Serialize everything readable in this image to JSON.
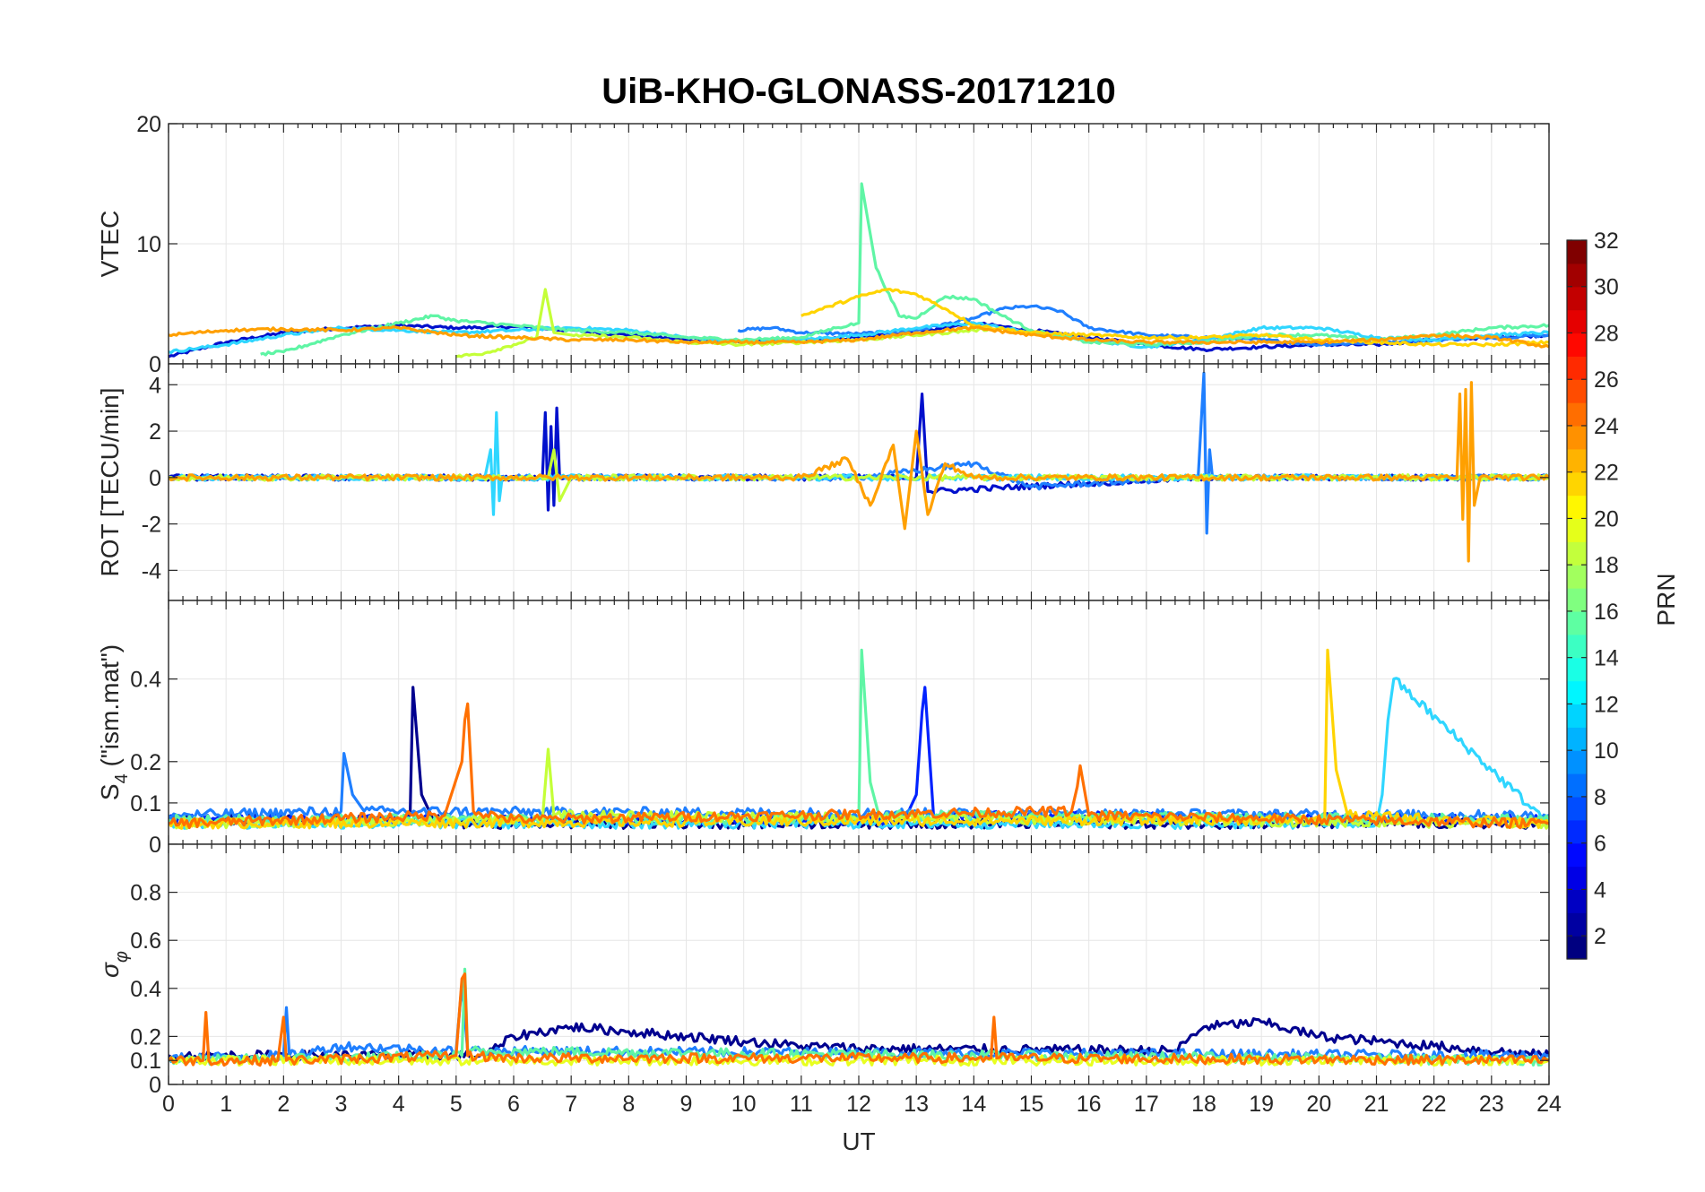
{
  "chart_data": {
    "title": "UiB-KHO-GLONASS-20171210",
    "xlabel": "UT",
    "xlim": [
      0,
      24
    ],
    "xticks": [
      "0",
      "1",
      "2",
      "3",
      "4",
      "5",
      "6",
      "7",
      "8",
      "9",
      "10",
      "11",
      "12",
      "13",
      "14",
      "15",
      "16",
      "17",
      "18",
      "19",
      "20",
      "21",
      "22",
      "23",
      "24"
    ],
    "colorbar": {
      "label": "PRN",
      "range": [
        1,
        32
      ],
      "ticks": [
        "2",
        "4",
        "6",
        "8",
        "10",
        "12",
        "14",
        "16",
        "18",
        "20",
        "22",
        "24",
        "26",
        "28",
        "30",
        "32"
      ],
      "colormap": "jet"
    },
    "panels": [
      {
        "name": "vtec",
        "type": "line",
        "ylabel": "VTEC",
        "ylim": [
          0,
          20
        ],
        "yticks": [
          {
            "v": 0,
            "t": "0"
          },
          {
            "v": 10,
            "t": "10"
          },
          {
            "v": 20,
            "t": "20"
          }
        ],
        "grid": true,
        "series": [
          {
            "prn": 2,
            "color": "#0010cc",
            "x": [
              0,
              1,
              2,
              3,
              4,
              5,
              6,
              7,
              8,
              9,
              10,
              11,
              12,
              13,
              14,
              15,
              16,
              17,
              18,
              19,
              20,
              21,
              22,
              23,
              24
            ],
            "y": [
              0.6,
              1.8,
              2.6,
              3.0,
              3.2,
              3.0,
              3.1,
              2.8,
              2.4,
              2.0,
              1.8,
              1.9,
              2.2,
              2.6,
              3.4,
              2.8,
              2.2,
              1.6,
              1.2,
              1.4,
              1.6,
              1.6,
              2.0,
              2.2,
              2.4
            ]
          },
          {
            "prn": 8,
            "color": "#1f7fff",
            "x": [
              9.9,
              10.5,
              11,
              12,
              13,
              14,
              14.5,
              15,
              15.5,
              16,
              17,
              18,
              19,
              20,
              21,
              22,
              23,
              24
            ],
            "y": [
              2.8,
              3.0,
              2.6,
              2.5,
              2.8,
              3.8,
              4.6,
              4.8,
              4.4,
              3.0,
              2.4,
              2.2,
              2.0,
              1.6,
              1.8,
              2.0,
              2.2,
              2.4
            ]
          },
          {
            "prn": 11,
            "color": "#2fd6ff",
            "x": [
              0,
              1,
              2,
              3,
              4,
              5,
              6,
              7,
              8,
              9,
              10,
              11,
              12,
              13,
              14,
              15,
              16,
              17,
              18,
              19,
              20,
              21,
              22,
              23,
              24
            ],
            "y": [
              1.0,
              1.6,
              2.4,
              3.0,
              2.8,
              2.6,
              2.8,
              3.0,
              2.8,
              2.2,
              1.8,
              2.0,
              2.4,
              3.0,
              3.4,
              2.6,
              2.0,
              1.4,
              2.0,
              3.0,
              3.0,
              2.2,
              2.0,
              2.4,
              2.6
            ]
          },
          {
            "prn": 15,
            "color": "#5ff5a5",
            "x": [
              1.6,
              2,
              3,
              4,
              4.6,
              5,
              6,
              7,
              8,
              9,
              10,
              11,
              11.6,
              12,
              12.05,
              12.3,
              12.7,
              13,
              13.5,
              14,
              14.5,
              15,
              16,
              17,
              18,
              19,
              20,
              21,
              22,
              23,
              24
            ],
            "y": [
              0.8,
              1.0,
              2.4,
              3.4,
              4.0,
              3.6,
              3.2,
              2.8,
              2.6,
              2.2,
              2.0,
              2.2,
              3.0,
              3.4,
              15.0,
              8.0,
              4.0,
              3.8,
              5.6,
              5.4,
              4.0,
              2.8,
              1.8,
              1.6,
              1.8,
              2.4,
              2.4,
              2.0,
              2.4,
              3.0,
              3.2
            ]
          },
          {
            "prn": 18,
            "color": "#c4ff38",
            "x": [
              5,
              5.5,
              6,
              6.4,
              6.55,
              6.7,
              7,
              8,
              9,
              10,
              11,
              12,
              13,
              14,
              14.5
            ],
            "y": [
              0.6,
              0.9,
              1.6,
              2.2,
              6.2,
              2.6,
              2.4,
              2.2,
              1.8,
              1.6,
              1.8,
              2.0,
              2.4,
              2.8,
              3.0
            ]
          },
          {
            "prn": 21,
            "color": "#ffd400",
            "x": [
              11,
              11.5,
              12,
              12.5,
              13,
              13.5,
              14,
              15,
              16,
              17,
              18,
              19,
              20,
              21,
              22,
              23,
              24
            ],
            "y": [
              4.0,
              4.8,
              5.6,
              6.2,
              5.8,
              4.6,
              3.2,
              2.6,
              2.4,
              2.2,
              2.2,
              2.4,
              2.0,
              1.8,
              1.6,
              1.6,
              1.8
            ]
          },
          {
            "prn": 23,
            "color": "#ffa000",
            "x": [
              0,
              1,
              2,
              3,
              4,
              5,
              6,
              7,
              8,
              9,
              10,
              11,
              12,
              13,
              14,
              15,
              16,
              17,
              18,
              19,
              20,
              21,
              22,
              23,
              24
            ],
            "y": [
              2.4,
              2.8,
              2.9,
              2.8,
              3.0,
              2.4,
              2.2,
              2.0,
              2.0,
              1.8,
              1.8,
              1.8,
              2.0,
              2.6,
              3.0,
              2.4,
              2.0,
              1.8,
              1.8,
              1.8,
              1.8,
              2.0,
              2.4,
              2.2,
              1.4
            ]
          }
        ]
      },
      {
        "name": "rot",
        "type": "line",
        "ylabel": "ROT [TECU/min]",
        "ylim": [
          -5.3,
          4.9
        ],
        "yticks": [
          {
            "v": -4,
            "t": "-4"
          },
          {
            "v": -2,
            "t": "-2"
          },
          {
            "v": 0,
            "t": "0"
          },
          {
            "v": 2,
            "t": "2"
          },
          {
            "v": 4,
            "t": "4"
          }
        ],
        "grid": true,
        "series": [
          {
            "prn": 2,
            "color": "#0010cc",
            "x": [
              0,
              4.2,
              6.5,
              6.55,
              6.6,
              6.65,
              6.7,
              6.75,
              6.8,
              13,
              13.1,
              13.2,
              18,
              24
            ],
            "y": [
              0,
              0,
              0,
              2.8,
              -1.4,
              2.2,
              -1.2,
              3.0,
              0,
              0,
              3.6,
              -0.6,
              0,
              0
            ]
          },
          {
            "prn": 8,
            "color": "#1f7fff",
            "x": [
              0,
              12,
              14,
              15,
              17.9,
              18.0,
              18.05,
              18.1,
              18.15,
              24
            ],
            "y": [
              0,
              0,
              0.6,
              -0.4,
              0,
              4.5,
              -2.4,
              1.2,
              0,
              0
            ]
          },
          {
            "prn": 11,
            "color": "#2fd6ff",
            "x": [
              0,
              5.5,
              5.6,
              5.65,
              5.7,
              5.75,
              5.8,
              6,
              24
            ],
            "y": [
              0,
              0,
              1.2,
              -1.6,
              2.8,
              -1.0,
              0,
              0,
              0
            ]
          },
          {
            "prn": 18,
            "color": "#c4ff38",
            "x": [
              0,
              6.6,
              6.7,
              6.8,
              7,
              24
            ],
            "y": [
              0,
              0,
              1.2,
              -1.0,
              0,
              0
            ]
          },
          {
            "prn": 23,
            "color": "#ffa000",
            "x": [
              0,
              11,
              11.8,
              12.2,
              12.6,
              12.8,
              13.0,
              13.2,
              13.5,
              14,
              16,
              22.4,
              22.45,
              22.5,
              22.55,
              22.6,
              22.65,
              22.7,
              22.8,
              24
            ],
            "y": [
              0,
              0,
              0.8,
              -1.2,
              1.4,
              -2.2,
              2.0,
              -1.6,
              0.6,
              0,
              0,
              0,
              3.6,
              -1.8,
              3.8,
              -3.6,
              4.1,
              -1.2,
              0,
              0
            ]
          }
        ]
      },
      {
        "name": "s4",
        "type": "line",
        "ylabel": "S4 (\"ism.mat\")",
        "ylim": [
          0,
          0.59
        ],
        "yticks": [
          {
            "v": 0,
            "t": "0"
          },
          {
            "v": 0.1,
            "t": "0.1"
          },
          {
            "v": 0.2,
            "t": "0.2"
          },
          {
            "v": 0.4,
            "t": "0.4"
          }
        ],
        "grid": true,
        "series": [
          {
            "prn": 1,
            "color": "#00008f",
            "x": [
              0,
              4,
              4.2,
              4.25,
              4.4,
              4.6,
              5,
              24
            ],
            "y": [
              0.06,
              0.06,
              0.07,
              0.38,
              0.12,
              0.06,
              0.05,
              0.05
            ]
          },
          {
            "prn": 4,
            "color": "#0022ff",
            "x": [
              0,
              12.8,
              13.0,
              13.1,
              13.15,
              13.3,
              24
            ],
            "y": [
              0.06,
              0.06,
              0.12,
              0.32,
              0.38,
              0.07,
              0.06
            ]
          },
          {
            "prn": 8,
            "color": "#1f7fff",
            "x": [
              0,
              3.0,
              3.05,
              3.2,
              3.4,
              24
            ],
            "y": [
              0.07,
              0.08,
              0.22,
              0.12,
              0.08,
              0.07
            ]
          },
          {
            "prn": 12,
            "color": "#2fd6ff",
            "x": [
              0,
              21.0,
              21.1,
              21.2,
              21.3,
              24
            ],
            "y": [
              0.05,
              0.05,
              0.12,
              0.3,
              0.4,
              0.05
            ]
          },
          {
            "prn": 15,
            "color": "#5ff5a5",
            "x": [
              0,
              12.0,
              12.05,
              12.2,
              12.35,
              24
            ],
            "y": [
              0.06,
              0.06,
              0.47,
              0.15,
              0.07,
              0.06
            ]
          },
          {
            "prn": 18,
            "color": "#c4ff38",
            "x": [
              0,
              6.5,
              6.6,
              6.7,
              24
            ],
            "y": [
              0.05,
              0.06,
              0.23,
              0.07,
              0.05
            ]
          },
          {
            "prn": 21,
            "color": "#ffd400",
            "x": [
              0,
              20.1,
              20.15,
              20.3,
              20.5,
              24
            ],
            "y": [
              0.05,
              0.06,
              0.47,
              0.18,
              0.07,
              0.05
            ]
          },
          {
            "prn": 24,
            "color": "#ff7000",
            "x": [
              0,
              4.8,
              5.1,
              5.15,
              5.2,
              5.3,
              6,
              15.7,
              15.8,
              15.85,
              16,
              24
            ],
            "y": [
              0.05,
              0.07,
              0.2,
              0.3,
              0.34,
              0.08,
              0.06,
              0.08,
              0.14,
              0.19,
              0.07,
              0.05
            ]
          }
        ]
      },
      {
        "name": "sigma",
        "type": "line",
        "ylabel": "σφ",
        "ylim": [
          0,
          1
        ],
        "yticks": [
          {
            "v": 0,
            "t": "0"
          },
          {
            "v": 0.1,
            "t": "0.1"
          },
          {
            "v": 0.2,
            "t": "0.2"
          },
          {
            "v": 0.4,
            "t": "0.4"
          },
          {
            "v": 0.6,
            "t": "0.6"
          },
          {
            "v": 0.8,
            "t": "0.8"
          }
        ],
        "grid": true,
        "series": [
          {
            "prn": 1,
            "color": "#00008f",
            "x": [
              0,
              5.5,
              6,
              7,
              8,
              9,
              10,
              11,
              12,
              17.5,
              18,
              19,
              20,
              21,
              22,
              24
            ],
            "y": [
              0.12,
              0.12,
              0.2,
              0.24,
              0.22,
              0.2,
              0.18,
              0.16,
              0.15,
              0.14,
              0.24,
              0.26,
              0.2,
              0.18,
              0.16,
              0.12
            ]
          },
          {
            "prn": 8,
            "color": "#1f7fff",
            "x": [
              0,
              2.0,
              2.05,
              2.1,
              3.0,
              5.0,
              5.1,
              5.2,
              24
            ],
            "y": [
              0.11,
              0.12,
              0.32,
              0.12,
              0.16,
              0.14,
              0.42,
              0.14,
              0.12
            ]
          },
          {
            "prn": 15,
            "color": "#5ff5a5",
            "x": [
              0,
              5.1,
              5.15,
              5.2,
              24
            ],
            "y": [
              0.1,
              0.12,
              0.48,
              0.14,
              0.1
            ]
          },
          {
            "prn": 20,
            "color": "#e8ff20",
            "x": [
              0,
              24
            ],
            "y": [
              0.1,
              0.1
            ]
          },
          {
            "prn": 24,
            "color": "#ff7000",
            "x": [
              0,
              0.6,
              0.65,
              0.7,
              1.9,
              2.0,
              2.05,
              5.0,
              5.1,
              5.15,
              5.2,
              6,
              14.3,
              14.35,
              14.4,
              24
            ],
            "y": [
              0.1,
              0.1,
              0.3,
              0.1,
              0.1,
              0.28,
              0.1,
              0.12,
              0.44,
              0.46,
              0.12,
              0.11,
              0.11,
              0.28,
              0.11,
              0.1
            ]
          }
        ]
      }
    ]
  }
}
